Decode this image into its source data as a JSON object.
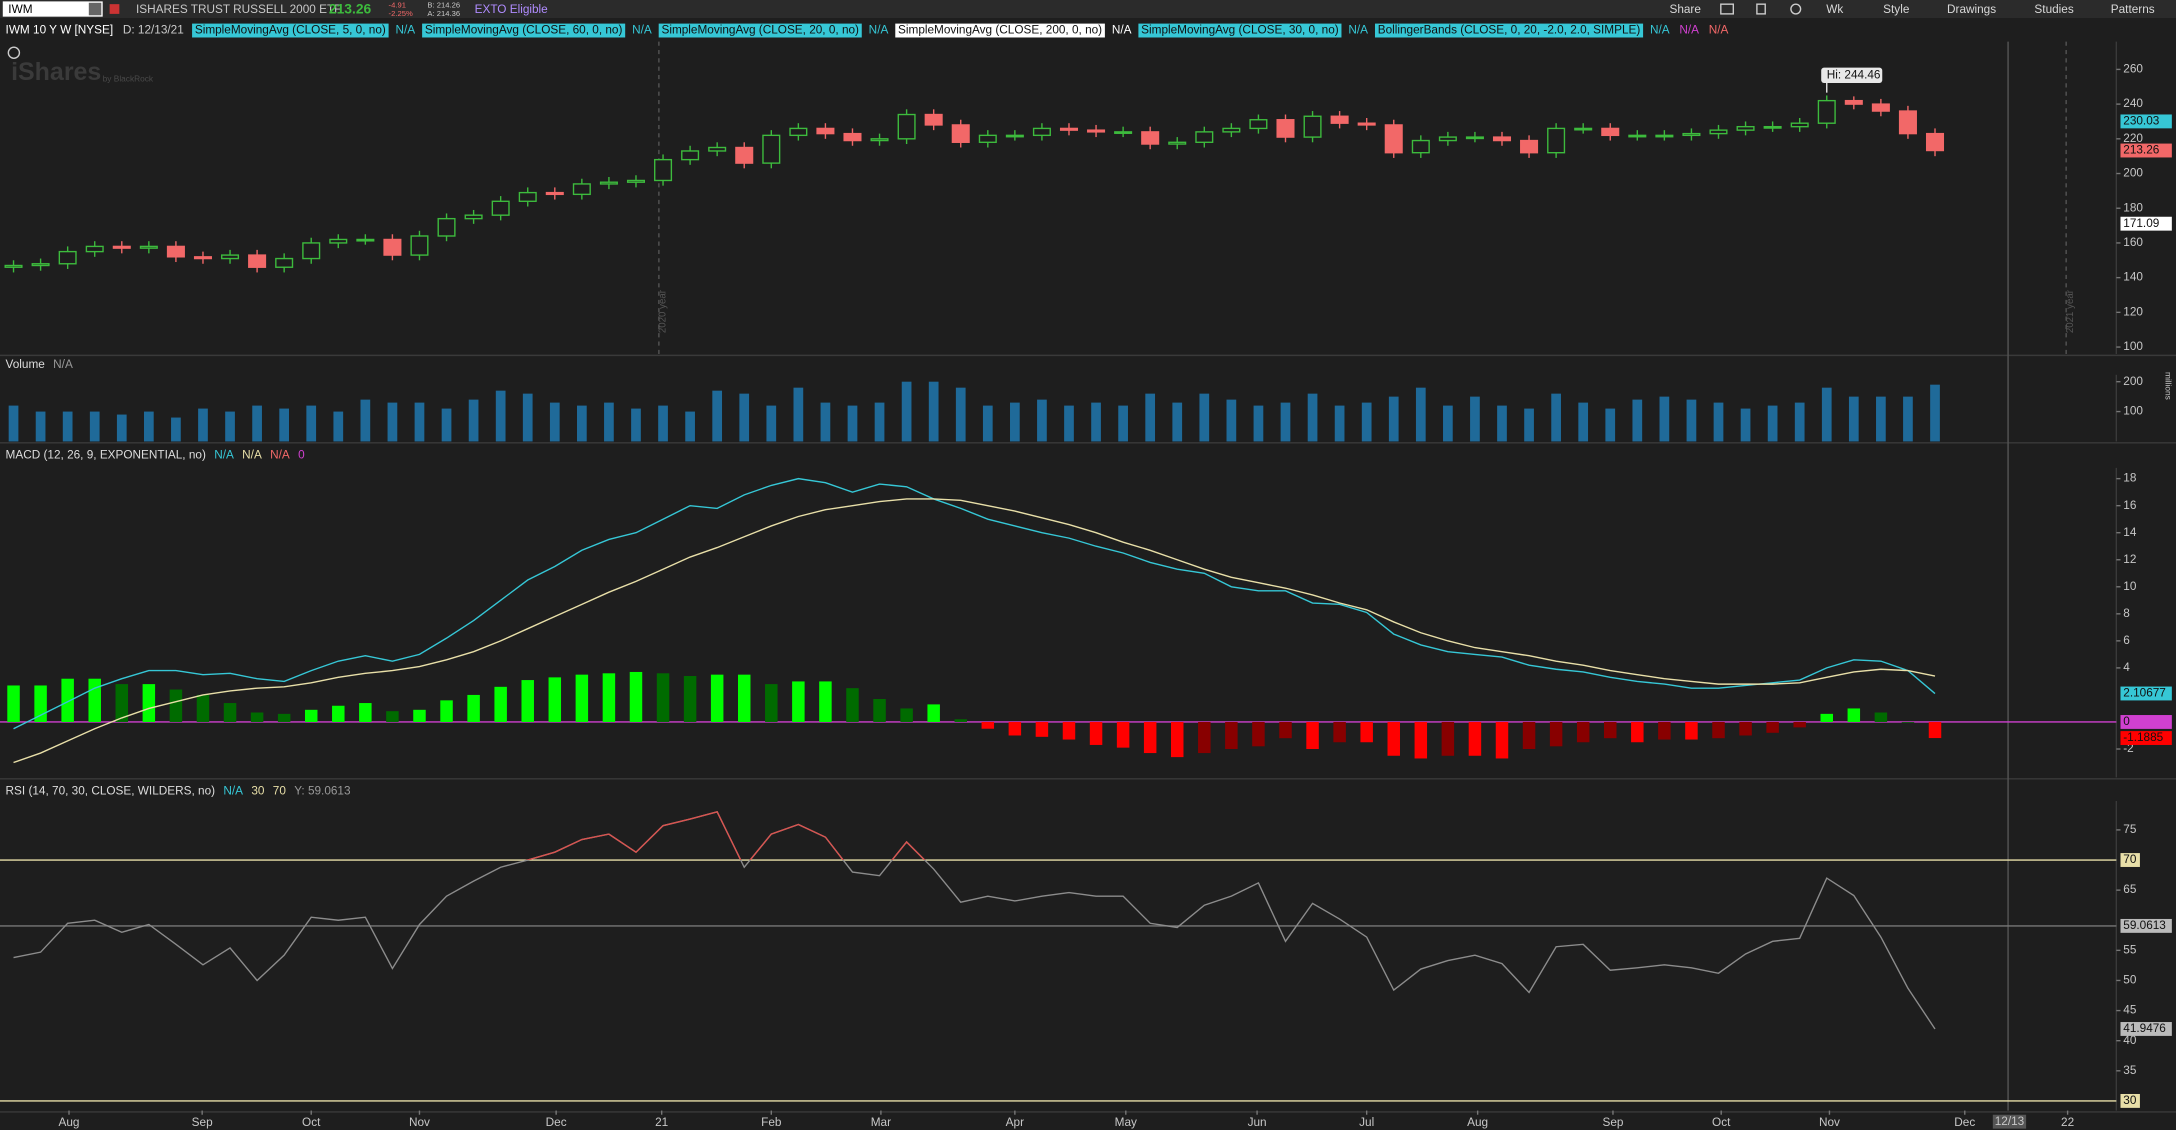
{
  "toolbar": {
    "symbol": "IWM",
    "name": "ISHARES TRUST RUSSELL 2000 ETF",
    "last": "213.26",
    "change": "-4.91",
    "change_pct": "-2.25%",
    "bid": "B: 214.26",
    "ask": "A: 214.36",
    "badge": "EXTO Eligible",
    "buttons": [
      "Share",
      "Wk",
      "Style",
      "Drawings",
      "Studies",
      "Patterns"
    ]
  },
  "header": {
    "title": "IWM 10 Y W [NYSE]",
    "date": "D: 12/13/21",
    "studies": [
      {
        "label": "SimpleMovingAvg (CLOSE, 5, 0, no)",
        "color": "#36c7d6",
        "tags": [
          "N/A"
        ]
      },
      {
        "label": "SimpleMovingAvg (CLOSE, 60, 0, no)",
        "color": "#36c7d6",
        "tags": [
          "N/A"
        ]
      },
      {
        "label": "SimpleMovingAvg (CLOSE, 20, 0, no)",
        "color": "#36c7d6",
        "tags": [
          "N/A"
        ]
      },
      {
        "label": "SimpleMovingAvg (CLOSE, 200, 0, no)",
        "color": "#ffffff",
        "tags": [
          "N/A"
        ]
      },
      {
        "label": "SimpleMovingAvg (CLOSE, 30, 0, no)",
        "color": "#36c7d6",
        "tags": [
          "N/A"
        ]
      },
      {
        "label": "BollingerBands (CLOSE, 0, 20, -2.0, 2.0, SIMPLE)",
        "color": "#36c7d6",
        "tags": [
          "N/A",
          "N/A",
          "N/A"
        ]
      }
    ]
  },
  "watermark": "iShares",
  "watermark_sub": "by BlackRock",
  "year_labels": [
    "2020 year",
    "2021 year"
  ],
  "x_axis": {
    "xlim": [
      -0.5,
      77.7
    ],
    "xticks": [
      {
        "value": 2.05,
        "label": "Aug"
      },
      {
        "value": 6.97,
        "label": "Sep"
      },
      {
        "value": 11.0,
        "label": "Oct"
      },
      {
        "value": 15.0,
        "label": "Nov"
      },
      {
        "value": 20.05,
        "label": "Dec"
      },
      {
        "value": 23.95,
        "label": "21"
      },
      {
        "value": 28.0,
        "label": "Feb"
      },
      {
        "value": 32.05,
        "label": "Mar"
      },
      {
        "value": 37.0,
        "label": "Apr"
      },
      {
        "value": 41.1,
        "label": "May"
      },
      {
        "value": 45.95,
        "label": "Jun"
      },
      {
        "value": 50.0,
        "label": "Jul"
      },
      {
        "value": 54.1,
        "label": "Aug"
      },
      {
        "value": 59.1,
        "label": "Sep"
      },
      {
        "value": 63.1,
        "label": "Oct"
      },
      {
        "value": 67.1,
        "label": "Nov"
      },
      {
        "value": 72.1,
        "label": "Dec"
      },
      {
        "value": 75.9,
        "label": "22"
      }
    ],
    "cursor": {
      "value": 73.7,
      "label": "12/13"
    }
  },
  "chart_data": [
    {
      "type": "candlestick",
      "up_color": "#3dbb3d",
      "down_color": "#f26868",
      "open": [
        146,
        147,
        148,
        155,
        158,
        157,
        158,
        152,
        151,
        153,
        146,
        151,
        160,
        162,
        162,
        153,
        164,
        174,
        176,
        184,
        189,
        188,
        194,
        195,
        196,
        208,
        213,
        215,
        206,
        222,
        226,
        223,
        219,
        220,
        234,
        228,
        218,
        222,
        222,
        226,
        225,
        224,
        224,
        217,
        218,
        224,
        226,
        231,
        221,
        233,
        229,
        228,
        212,
        219,
        221,
        221,
        219,
        212,
        226,
        226,
        222,
        222,
        222,
        223,
        225,
        227,
        227,
        229,
        242,
        240,
        236,
        223
      ],
      "high": [
        150,
        151,
        158,
        161,
        161,
        161,
        161,
        155,
        156,
        156,
        154,
        163,
        165,
        165,
        165,
        167,
        177,
        179,
        187,
        192,
        192,
        197,
        198,
        199,
        211,
        216,
        218,
        218,
        225,
        229,
        229,
        226,
        223,
        237,
        237,
        231,
        225,
        225,
        229,
        229,
        228,
        227,
        227,
        221,
        227,
        229,
        234,
        234,
        236,
        236,
        232,
        231,
        222,
        224,
        224,
        224,
        222,
        229,
        229,
        229,
        225,
        225,
        226,
        228,
        230,
        230,
        232,
        245,
        244.46,
        243,
        239,
        226
      ],
      "low": [
        143,
        144,
        145,
        152,
        154,
        154,
        149,
        148,
        148,
        143,
        143,
        148,
        157,
        159,
        150,
        150,
        161,
        171,
        173,
        181,
        185,
        185,
        191,
        192,
        193,
        205,
        210,
        203,
        203,
        219,
        220,
        216,
        216,
        217,
        225,
        215,
        215,
        219,
        219,
        222,
        221,
        221,
        214,
        214,
        215,
        221,
        223,
        218,
        218,
        226,
        225,
        209,
        209,
        216,
        218,
        216,
        209,
        209,
        223,
        219,
        219,
        219,
        219,
        220,
        222,
        224,
        224,
        226,
        237,
        233,
        220,
        210
      ],
      "close": [
        147,
        148,
        155,
        158,
        157,
        158,
        152,
        151,
        153,
        146,
        151,
        160,
        162,
        162,
        153,
        164,
        174,
        176,
        184,
        189,
        188,
        194,
        195,
        196,
        208,
        213,
        215,
        206,
        222,
        226,
        223,
        219,
        220,
        234,
        228,
        218,
        222,
        222,
        226,
        225,
        224,
        224,
        217,
        218,
        224,
        226,
        231,
        221,
        233,
        229,
        228,
        212,
        219,
        221,
        221,
        219,
        212,
        226,
        226,
        222,
        222,
        222,
        223,
        225,
        227,
        227,
        229,
        242,
        240,
        236,
        223,
        213.26
      ],
      "ylim": [
        96,
        276
      ],
      "yticks": [
        100,
        120,
        140,
        160,
        180,
        200,
        220,
        240,
        260
      ],
      "annotation": "Hi: 244.46",
      "value_tags": [
        {
          "value": 230.03,
          "label": "230.03",
          "color": "#36c7d6"
        },
        {
          "value": 213.26,
          "label": "213.26",
          "color": "#f26868"
        },
        {
          "value": 171.09,
          "label": "171.09",
          "color": "#ffffff"
        }
      ]
    },
    {
      "type": "bar",
      "title": "Volume",
      "tags": [
        "N/A"
      ],
      "unit": "millions",
      "color": "#1f6a99",
      "values": [
        120,
        100,
        100,
        100,
        90,
        100,
        80,
        110,
        100,
        120,
        110,
        120,
        100,
        140,
        130,
        130,
        110,
        140,
        170,
        160,
        130,
        120,
        130,
        110,
        120,
        100,
        170,
        160,
        120,
        180,
        130,
        120,
        130,
        200,
        200,
        180,
        120,
        130,
        140,
        120,
        130,
        120,
        160,
        130,
        160,
        140,
        120,
        130,
        160,
        120,
        130,
        150,
        180,
        120,
        150,
        120,
        110,
        160,
        130,
        110,
        140,
        150,
        140,
        130,
        110,
        120,
        130,
        180,
        150,
        150,
        150,
        190
      ],
      "ylim": [
        0,
        223
      ],
      "yticks": [
        100,
        200
      ]
    },
    {
      "type": "macd",
      "title": "MACD (12, 26, 9, EXPONENTIAL, no)",
      "tags": [
        {
          "label": "N/A",
          "color": "#36c7d6"
        },
        {
          "label": "N/A",
          "color": "#e8dfa8"
        },
        {
          "label": "N/A",
          "color": "#f26868"
        },
        {
          "label": "0",
          "color": "#d040d0"
        }
      ],
      "series": [
        {
          "color": "#36c7d6",
          "values": [
            -0.5,
            0.5,
            1.5,
            2.5,
            3.2,
            3.8,
            3.8,
            3.5,
            3.6,
            3.2,
            3.0,
            3.8,
            4.5,
            4.9,
            4.5,
            5.0,
            6.2,
            7.5,
            9.0,
            10.5,
            11.5,
            12.7,
            13.5,
            14.0,
            15.0,
            16.0,
            15.8,
            16.8,
            17.5,
            18.0,
            17.7,
            17.0,
            17.6,
            17.4,
            16.5,
            15.8,
            15.0,
            14.5,
            14.0,
            13.6,
            13.0,
            12.5,
            11.8,
            11.3,
            11.0,
            10.0,
            9.7,
            9.7,
            8.8,
            8.7,
            8.1,
            6.5,
            5.7,
            5.2,
            5.0,
            4.8,
            4.2,
            3.9,
            3.7,
            3.3,
            3.0,
            2.8,
            2.5,
            2.5,
            2.7,
            2.9,
            3.1,
            4.0,
            4.6,
            4.5,
            3.8,
            2.1
          ]
        },
        {
          "color": "#e8dfa8",
          "values": [
            -3,
            -2.3,
            -1.4,
            -0.5,
            0.3,
            1.0,
            1.5,
            2.0,
            2.3,
            2.5,
            2.6,
            2.9,
            3.3,
            3.6,
            3.8,
            4.1,
            4.6,
            5.2,
            6.0,
            6.9,
            7.8,
            8.7,
            9.6,
            10.4,
            11.3,
            12.2,
            12.9,
            13.7,
            14.5,
            15.2,
            15.7,
            16.0,
            16.3,
            16.5,
            16.5,
            16.4,
            16.0,
            15.6,
            15.1,
            14.6,
            14.0,
            13.3,
            12.7,
            12.0,
            11.3,
            10.7,
            10.3,
            9.9,
            9.4,
            8.8,
            8.3,
            7.4,
            6.6,
            6.0,
            5.5,
            5.2,
            4.9,
            4.5,
            4.2,
            3.8,
            3.5,
            3.2,
            3.0,
            2.8,
            2.8,
            2.8,
            2.9,
            3.3,
            3.7,
            3.9,
            3.8,
            3.4
          ]
        }
      ],
      "histogram": [
        2.7,
        2.7,
        3.2,
        3.2,
        2.8,
        2.8,
        2.4,
        2.0,
        1.4,
        0.7,
        0.6,
        0.9,
        1.2,
        1.4,
        0.8,
        0.9,
        1.6,
        2.0,
        2.6,
        3.1,
        3.3,
        3.5,
        3.6,
        3.7,
        3.6,
        3.4,
        3.5,
        3.5,
        2.8,
        3.0,
        3.0,
        2.5,
        1.7,
        1.0,
        1.3,
        0.2,
        -0.5,
        -1.0,
        -1.1,
        -1.3,
        -1.7,
        -1.9,
        -2.3,
        -2.6,
        -2.3,
        -2.0,
        -1.8,
        -1.2,
        -2.0,
        -1.5,
        -1.5,
        -2.5,
        -2.7,
        -2.5,
        -2.5,
        -2.7,
        -2.0,
        -1.8,
        -1.5,
        -1.2,
        -1.5,
        -1.3,
        -1.3,
        -1.2,
        -1.0,
        -0.8,
        -0.4,
        0.6,
        1.0,
        0.7,
        0,
        -1.19
      ],
      "hist_colors": [
        "#00ff00",
        "#006b00",
        "#ff0000",
        "#880000"
      ],
      "zero_color": "#d040d0",
      "ylim": [
        -4.1,
        18.8
      ],
      "yticks": [
        -2,
        4,
        6,
        8,
        10,
        12,
        14,
        16,
        18
      ],
      "value_tags": [
        {
          "value": 2.10677,
          "label": "2.10677",
          "color": "#36c7d6"
        },
        {
          "value": 0,
          "label": "0",
          "color": "#d040d0"
        },
        {
          "value": -1.1885,
          "label": "-1.1885",
          "color": "#ff0000"
        }
      ]
    },
    {
      "type": "line",
      "title": "RSI (14, 70, 30, CLOSE, WILDERS, no)",
      "tags": [
        "N/A"
      ],
      "y_tag": "Y: 59.0613",
      "color": "#8c8c8c",
      "overbought_color": "#d9534f",
      "level_color": "#e8dfa8",
      "values": [
        53.8,
        54.7,
        59.5,
        60,
        58,
        59.3,
        56,
        52.6,
        55.4,
        50,
        54.2,
        60.5,
        60,
        60.5,
        52,
        59.3,
        64,
        66.5,
        68.8,
        70,
        71.3,
        73.4,
        74.3,
        71.3,
        75.7,
        76.8,
        78,
        68.8,
        74.3,
        75.9,
        73.8,
        68,
        67.4,
        73,
        68.5,
        63,
        64,
        63.2,
        64,
        64.6,
        64,
        64,
        59.5,
        58.8,
        62.5,
        64,
        66.2,
        56.5,
        62.8,
        60.2,
        57.2,
        48.4,
        51.9,
        53.3,
        54.2,
        52.8,
        48,
        55.6,
        56,
        51.7,
        52.1,
        52.6,
        52.1,
        51.2,
        54.4,
        56.5,
        57,
        67,
        64.1,
        57.2,
        48.7,
        41.95
      ],
      "levels": [
        30,
        70
      ],
      "ylim": [
        28.4,
        79.8
      ],
      "yticks": [
        35,
        40,
        45,
        50,
        55,
        65,
        75
      ],
      "value_tags": [
        {
          "value": 59.0613,
          "label": "59.0613",
          "color": "#bbbbbb"
        },
        {
          "value": 41.9476,
          "label": "41.9476",
          "color": "#bbbbbb"
        }
      ]
    }
  ]
}
